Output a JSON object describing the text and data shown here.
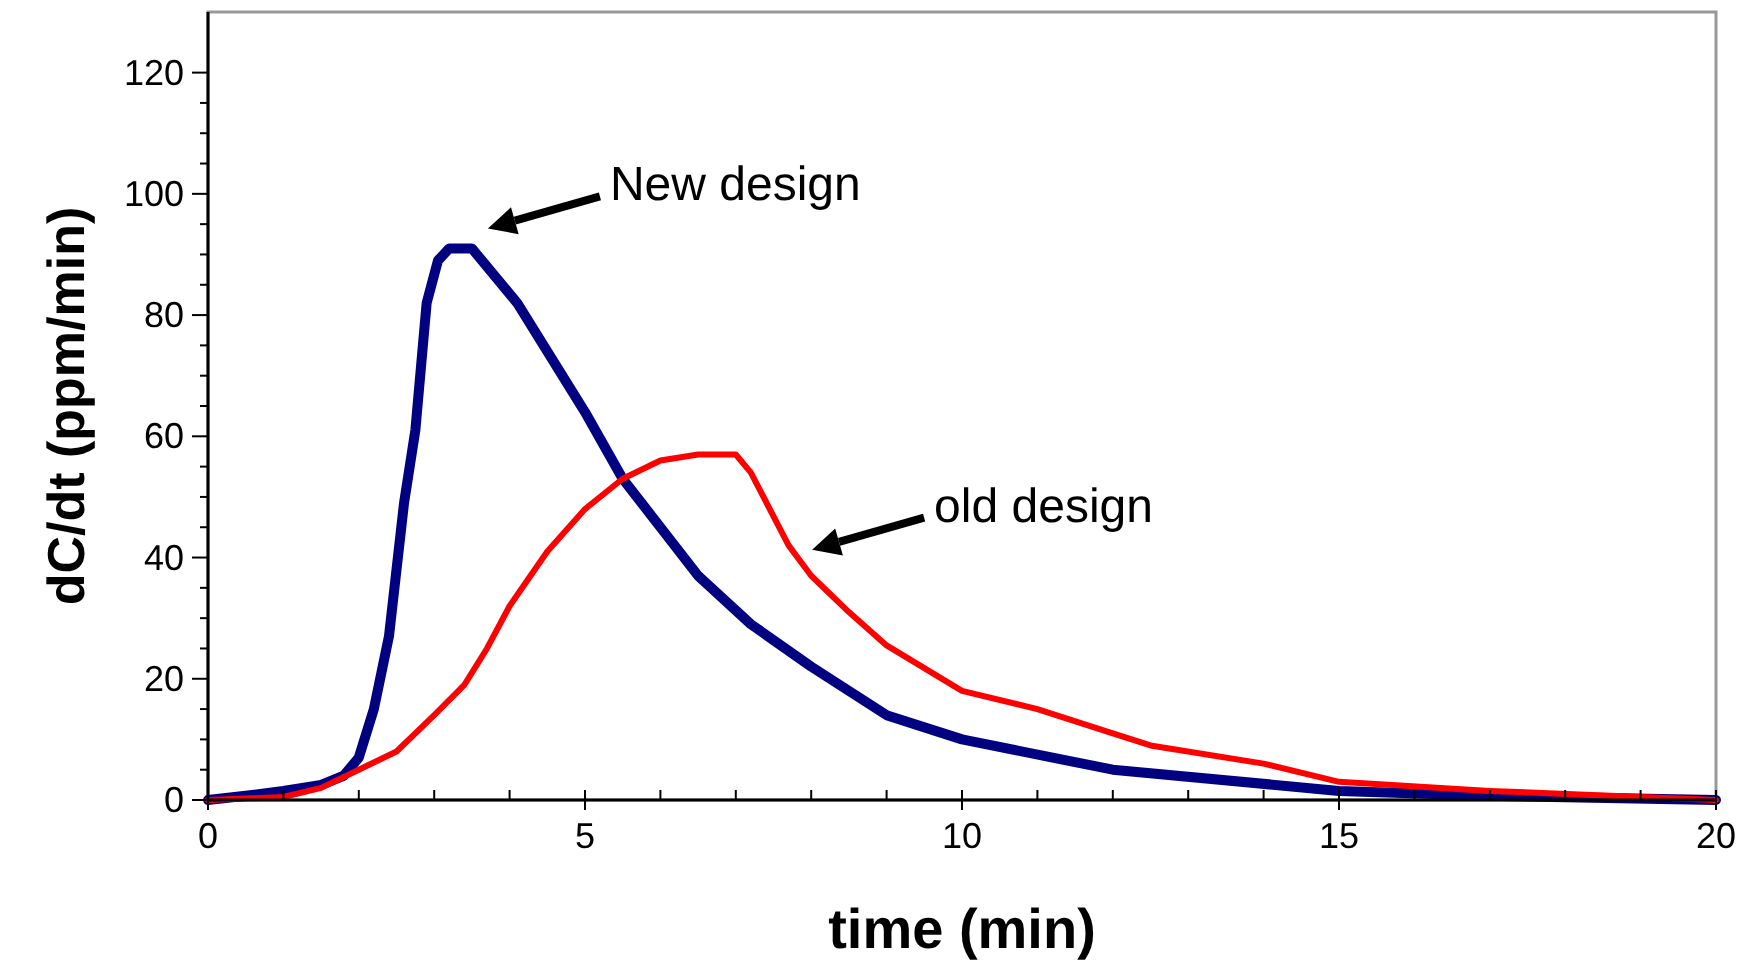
{
  "chart_data": {
    "type": "line",
    "xlabel": "time (min)",
    "ylabel": "dC/dt (ppm/min)",
    "xlim": [
      0,
      20
    ],
    "ylim": [
      0,
      130
    ],
    "xticks": [
      0,
      {
        "value": 1,
        "label": null
      },
      {
        "value": 2,
        "label": null
      },
      {
        "value": 3,
        "label": null
      },
      {
        "value": 4,
        "label": null
      },
      5,
      {
        "value": 6,
        "label": null
      },
      {
        "value": 7,
        "label": null
      },
      {
        "value": 8,
        "label": null
      },
      {
        "value": 9,
        "label": null
      },
      10,
      {
        "value": 11,
        "label": null
      },
      {
        "value": 12,
        "label": null
      },
      {
        "value": 13,
        "label": null
      },
      {
        "value": 14,
        "label": null
      },
      15,
      {
        "value": 16,
        "label": null
      },
      {
        "value": 17,
        "label": null
      },
      {
        "value": 18,
        "label": null
      },
      {
        "value": 19,
        "label": null
      },
      20
    ],
    "yticks": [
      0,
      {
        "value": 5,
        "label": null
      },
      {
        "value": 10,
        "label": null
      },
      {
        "value": 15,
        "label": null
      },
      20,
      {
        "value": 25,
        "label": null
      },
      {
        "value": 30,
        "label": null
      },
      {
        "value": 35,
        "label": null
      },
      40,
      {
        "value": 45,
        "label": null
      },
      {
        "value": 50,
        "label": null
      },
      {
        "value": 55,
        "label": null
      },
      60,
      {
        "value": 65,
        "label": null
      },
      {
        "value": 70,
        "label": null
      },
      {
        "value": 75,
        "label": null
      },
      80,
      {
        "value": 85,
        "label": null
      },
      {
        "value": 90,
        "label": null
      },
      {
        "value": 95,
        "label": null
      },
      100,
      {
        "value": 105,
        "label": null
      },
      {
        "value": 110,
        "label": null
      },
      {
        "value": 115,
        "label": null
      },
      120
    ],
    "grid": false,
    "marker": "none",
    "line_style": "solid",
    "series": [
      {
        "color": "#000080",
        "x": [
          0,
          0.5,
          1,
          1.5,
          1.8,
          2,
          2.2,
          2.4,
          2.6,
          2.75,
          2.9,
          3.05,
          3.2,
          3.5,
          4.1,
          5,
          5.5,
          6,
          6.5,
          7.2,
          8,
          9,
          10,
          12,
          15,
          17,
          20
        ],
        "values": [
          0,
          0.7,
          1.5,
          2.5,
          4,
          7,
          15,
          27,
          49,
          61,
          82,
          89,
          91,
          91,
          82,
          64,
          53,
          45,
          37,
          29,
          22,
          14,
          10,
          5,
          1.5,
          0.7,
          0
        ]
      },
      {
        "color": "#ff0000",
        "x": [
          0,
          1,
          1.5,
          2,
          2.5,
          3,
          3.4,
          3.7,
          4,
          4.5,
          5,
          5.5,
          6,
          6.5,
          7,
          7.2,
          7.7,
          8,
          8.5,
          9,
          10,
          11,
          12,
          12.5,
          14,
          15,
          17,
          20
        ],
        "values": [
          0,
          0.5,
          2,
          5,
          8,
          14,
          19,
          25,
          32,
          41,
          48,
          53,
          56,
          57,
          57,
          54,
          42,
          37,
          31,
          25.5,
          18,
          15,
          11,
          9,
          6,
          3,
          1.5,
          0
        ]
      }
    ],
    "annotations": [
      {
        "text": "New design",
        "x": 3.5,
        "y": 91
      },
      {
        "text": "old design",
        "x": 7.8,
        "y": 38
      }
    ]
  }
}
